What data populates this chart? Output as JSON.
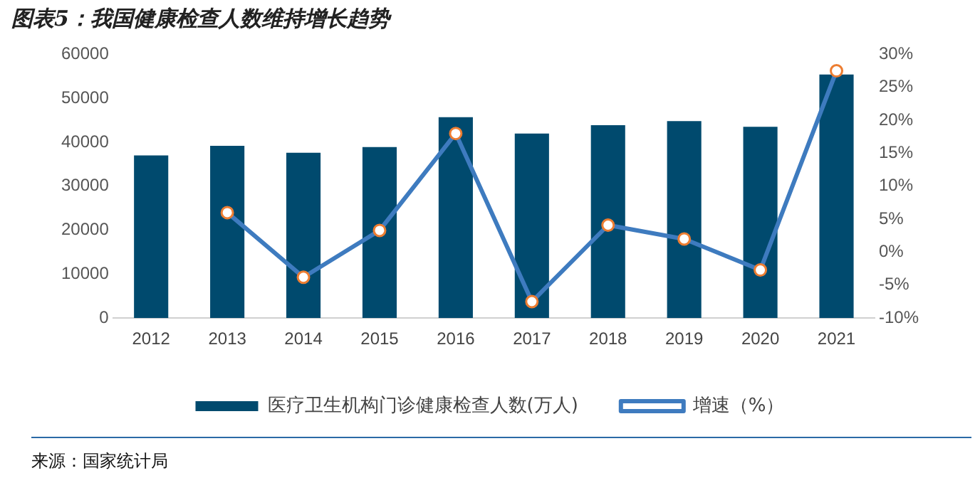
{
  "chart_data": {
    "type": "bar",
    "title": "图表5：我国健康检查人数维持增长趋势",
    "categories": [
      "2012",
      "2013",
      "2014",
      "2015",
      "2016",
      "2017",
      "2018",
      "2019",
      "2020",
      "2021"
    ],
    "series": [
      {
        "name": "医疗卫生机构门诊健康检查人数(万人)",
        "color": "#004a6e",
        "values": [
          37000,
          39200,
          37600,
          38900,
          45700,
          42000,
          43900,
          44800,
          43500,
          55400
        ]
      },
      {
        "name": "增速（%）",
        "type": "line",
        "axis": "y2",
        "color": "#3e7bbf",
        "marker": "circle",
        "values": [
          null,
          6.0,
          -3.8,
          3.3,
          18.0,
          -7.5,
          4.1,
          2.0,
          -2.7,
          27.5
        ]
      }
    ],
    "ylim": [
      0,
      60000
    ],
    "yticks": [
      0,
      10000,
      20000,
      30000,
      40000,
      50000,
      60000
    ],
    "y2lim": [
      -10,
      30
    ],
    "y2ticks": [
      {
        "value": -10,
        "label": "-10%"
      },
      {
        "value": -5,
        "label": "-5%"
      },
      {
        "value": 0,
        "label": "0%"
      },
      {
        "value": 5,
        "label": "5%"
      },
      {
        "value": 10,
        "label": "10%"
      },
      {
        "value": 15,
        "label": "15%"
      },
      {
        "value": 20,
        "label": "20%"
      },
      {
        "value": 25,
        "label": "25%"
      },
      {
        "value": 30,
        "label": "30%"
      }
    ],
    "grid": false,
    "legend": "bottom",
    "annotations": [
      "来源：国家统计局"
    ]
  }
}
